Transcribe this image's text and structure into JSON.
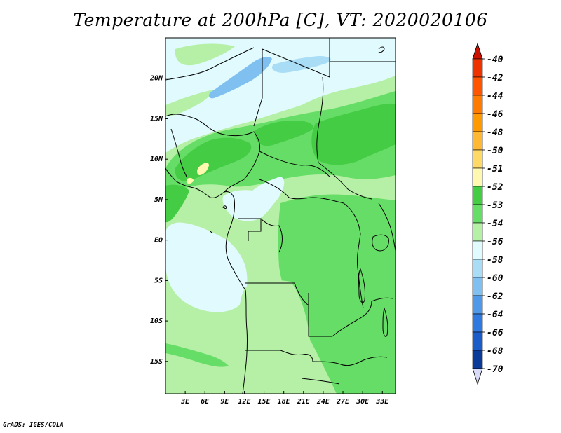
{
  "title": "Temperature at 200hPa [C], VT: 2020020106",
  "footer": "GrADS: IGES/COLA",
  "map": {
    "lon_range": [
      0,
      35
    ],
    "lat_range": [
      -19,
      25
    ],
    "lat_ticks": [
      "20N",
      "15N",
      "10N",
      "5N",
      "EQ",
      "5S",
      "10S",
      "15S"
    ],
    "lat_values": [
      20,
      15,
      10,
      5,
      0,
      -5,
      -10,
      -15
    ],
    "lon_ticks": [
      "3E",
      "6E",
      "9E",
      "12E",
      "15E",
      "18E",
      "21E",
      "24E",
      "27E",
      "30E",
      "33E"
    ],
    "lon_values": [
      3,
      6,
      9,
      12,
      15,
      18,
      21,
      24,
      27,
      30,
      33
    ]
  },
  "colorbar": {
    "labels": [
      "-40",
      "-42",
      "-44",
      "-46",
      "-48",
      "-50",
      "-51",
      "-52",
      "-53",
      "-54",
      "-56",
      "-58",
      "-60",
      "-62",
      "-64",
      "-66",
      "-68",
      "-70"
    ],
    "colors": [
      "#ee3300",
      "#ff5500",
      "#ff7a00",
      "#ff9900",
      "#ffb833",
      "#ffd966",
      "#fff8b0",
      "#44cc44",
      "#66dd66",
      "#b5f0a6",
      "#e0fafe",
      "#a9dcf5",
      "#80c0f0",
      "#4f9ae8",
      "#2f7ae0",
      "#1a5cc8",
      "#0a3a9a",
      "#001a6e"
    ],
    "top_triangle_color": "#cc1100",
    "bottom_triangle_color": "#d9d9f8"
  }
}
